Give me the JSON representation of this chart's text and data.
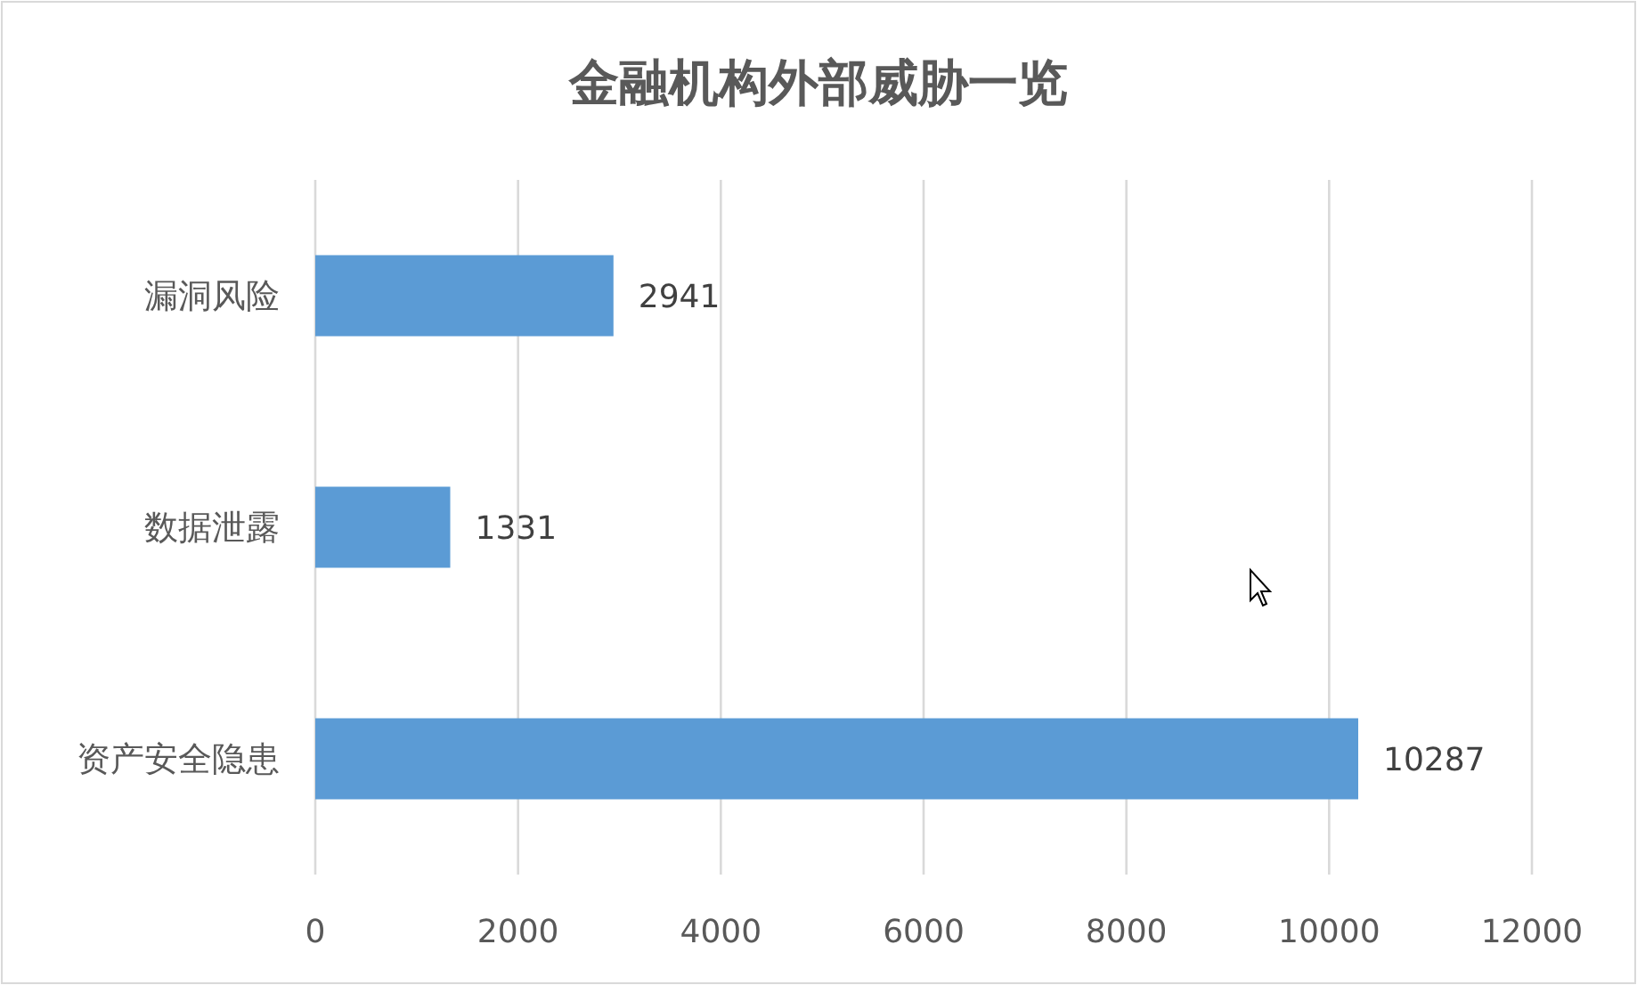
{
  "chart_data": {
    "type": "bar",
    "orientation": "horizontal",
    "title": "金融机构外部威胁一览",
    "categories": [
      "漏洞风险",
      "数据泄露",
      "资产安全隐患"
    ],
    "values": [
      2941,
      1331,
      10287
    ],
    "color": "#5b9bd5",
    "xlim": [
      0,
      12000
    ],
    "xticks": [
      0,
      2000,
      4000,
      6000,
      8000,
      10000,
      12000
    ],
    "grid": "x",
    "data_labels": true
  }
}
